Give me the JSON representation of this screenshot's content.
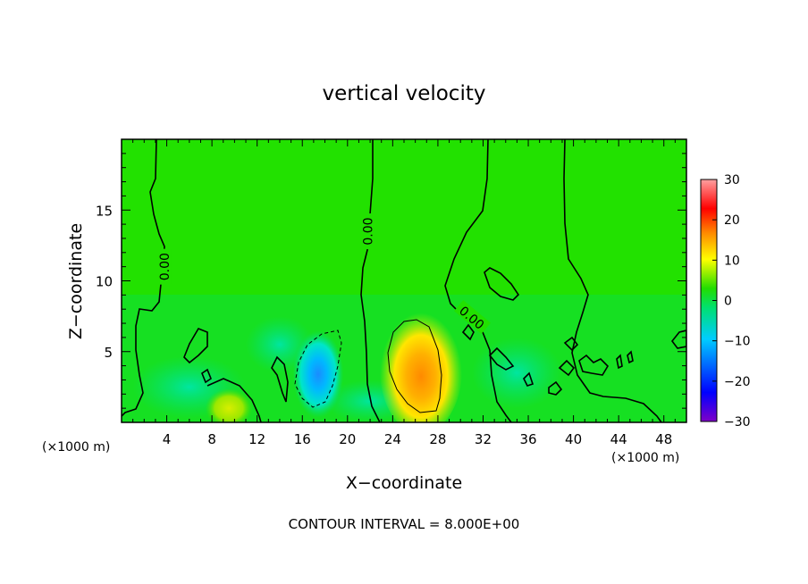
{
  "chart_data": {
    "type": "heatmap",
    "title": "vertical velocity",
    "xlabel": "X−coordinate",
    "ylabel": "Z−coordinate",
    "x_unit_left": "(×1000 m)",
    "x_unit_right": "(×1000 m)",
    "footer": "CONTOUR INTERVAL = 8.000E+00",
    "xlim": [
      0,
      50
    ],
    "ylim": [
      0,
      20
    ],
    "x_ticks": [
      4,
      8,
      12,
      16,
      20,
      24,
      28,
      32,
      36,
      40,
      44,
      48
    ],
    "x_tick_labels": [
      "4",
      "8",
      "12",
      "16",
      "20",
      "24",
      "28",
      "32",
      "36",
      "40",
      "44",
      "48"
    ],
    "y_ticks": [
      5,
      10,
      15
    ],
    "y_tick_labels": [
      "5",
      "10",
      "15"
    ],
    "colorbar": {
      "min": -30,
      "max": 30,
      "ticks": [
        30,
        20,
        10,
        0,
        -10,
        -20,
        -30
      ],
      "tick_labels": [
        "30",
        "20",
        "10",
        "0",
        "−10",
        "−20",
        "−30"
      ],
      "colors": [
        "#7f00c8",
        "#0000ff",
        "#00ccff",
        "#00e070",
        "#22dd00",
        "#ffff00",
        "#ff8800",
        "#ff0000",
        "#ffa0a0"
      ]
    },
    "background_value": 2,
    "features": [
      {
        "name": "updraft",
        "x": 26.5,
        "z": 3.7,
        "rx": 2.6,
        "rz": 3.2,
        "peak": 13
      },
      {
        "name": "downdraft",
        "x": 17.4,
        "z": 3.4,
        "rx": 1.6,
        "rz": 2.2,
        "peak": -9
      },
      {
        "name": "warm-patch-low",
        "x": 9.5,
        "z": 1.0,
        "rx": 1.5,
        "rz": 1.0,
        "peak": 6
      }
    ],
    "contour_labels": [
      {
        "text": "0.00",
        "x": 3.8,
        "z": 11.0,
        "rotate": -90
      },
      {
        "text": "0.00",
        "x": 21.8,
        "z": 13.5,
        "rotate": -90
      },
      {
        "text": "0.00",
        "x": 31.0,
        "z": 7.4,
        "rotate": 40
      }
    ]
  }
}
